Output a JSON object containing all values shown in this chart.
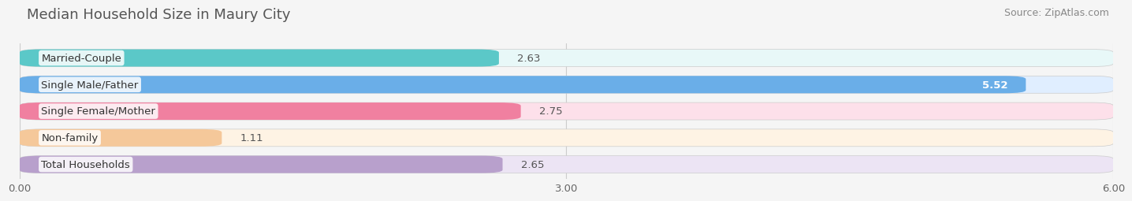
{
  "title": "Median Household Size in Maury City",
  "source": "Source: ZipAtlas.com",
  "categories": [
    "Married-Couple",
    "Single Male/Father",
    "Single Female/Mother",
    "Non-family",
    "Total Households"
  ],
  "values": [
    2.63,
    5.52,
    2.75,
    1.11,
    2.65
  ],
  "bar_colors": [
    "#5bc8c8",
    "#6aaee8",
    "#f080a0",
    "#f5c89a",
    "#b8a0cc"
  ],
  "bg_colors": [
    "#e8f8f8",
    "#e0eeff",
    "#fde0ea",
    "#fef3e4",
    "#ece4f4"
  ],
  "value_inside": [
    false,
    true,
    false,
    false,
    false
  ],
  "xlim": [
    0,
    6.0
  ],
  "xticks": [
    0.0,
    3.0,
    6.0
  ],
  "xtick_labels": [
    "0.00",
    "3.00",
    "6.00"
  ],
  "title_fontsize": 13,
  "source_fontsize": 9,
  "label_fontsize": 9.5,
  "value_fontsize": 9.5,
  "background_color": "#f5f5f5",
  "bar_height": 0.65,
  "bar_rounding": 0.12
}
